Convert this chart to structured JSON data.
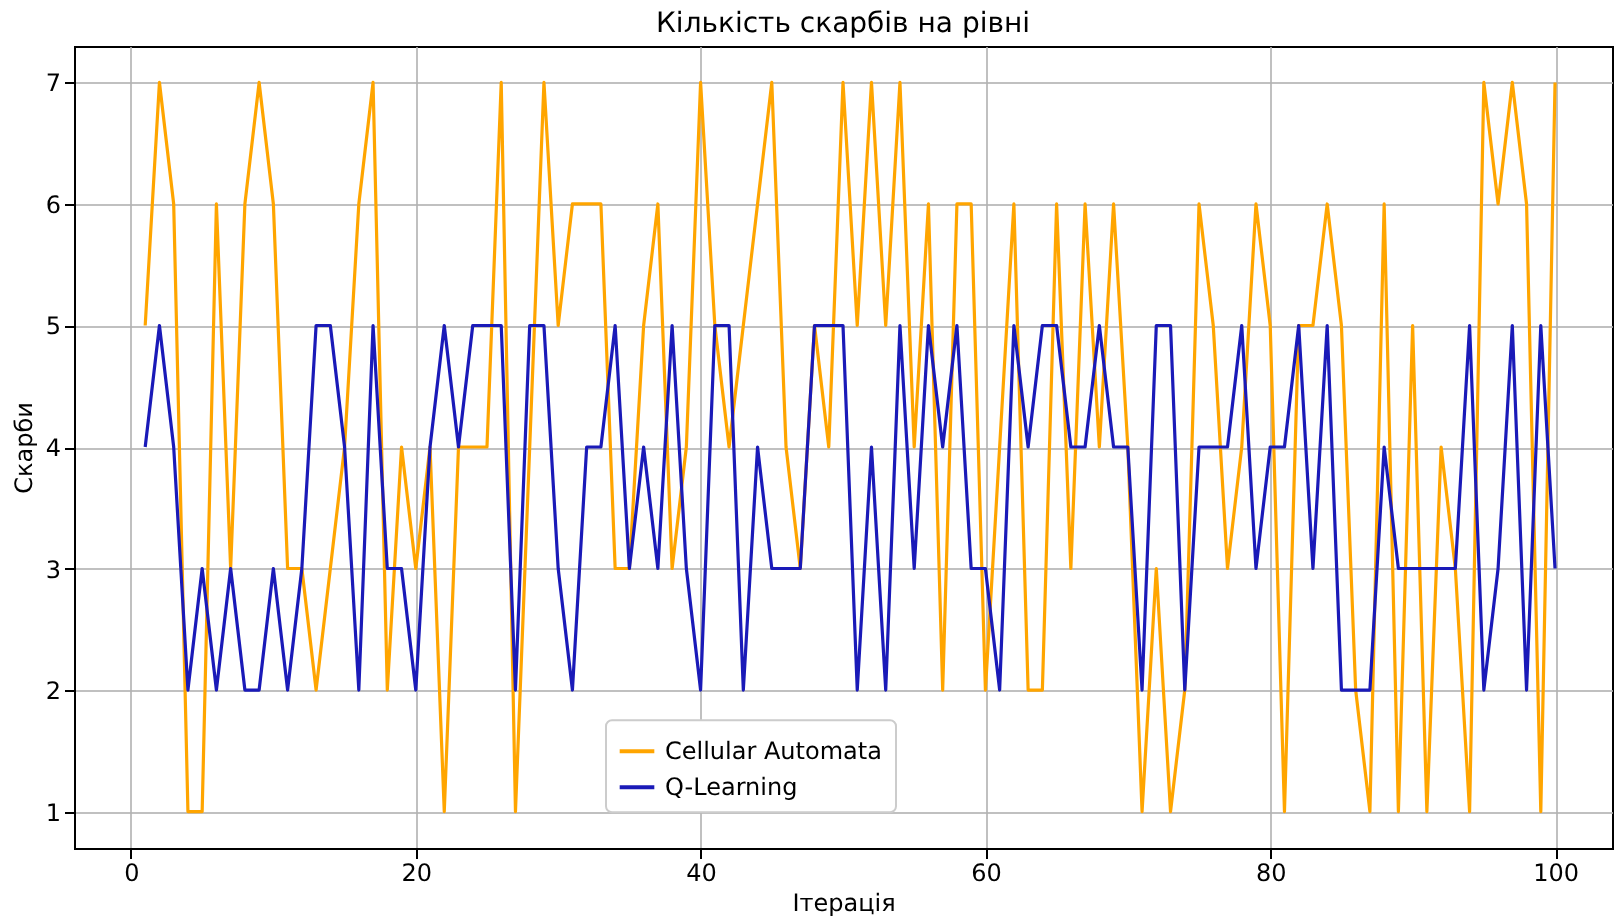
{
  "chart_data": {
    "type": "line",
    "title": "Кількість скарбів на рівні",
    "xlabel": "Ітерація",
    "ylabel": "Скарби",
    "x": [
      1,
      2,
      3,
      4,
      5,
      6,
      7,
      8,
      9,
      10,
      11,
      12,
      13,
      14,
      15,
      16,
      17,
      18,
      19,
      20,
      21,
      22,
      23,
      24,
      25,
      26,
      27,
      28,
      29,
      30,
      31,
      32,
      33,
      34,
      35,
      36,
      37,
      38,
      39,
      40,
      41,
      42,
      43,
      44,
      45,
      46,
      47,
      48,
      49,
      50,
      51,
      52,
      53,
      54,
      55,
      56,
      57,
      58,
      59,
      60,
      61,
      62,
      63,
      64,
      65,
      66,
      67,
      68,
      69,
      70,
      71,
      72,
      73,
      74,
      75,
      76,
      77,
      78,
      79,
      80,
      81,
      82,
      83,
      84,
      85,
      86,
      87,
      88,
      89,
      90,
      91,
      92,
      93,
      94,
      95,
      96,
      97,
      98,
      99,
      100
    ],
    "series": [
      {
        "name": "Cellular Automata",
        "color": "#ffa500",
        "values": [
          5,
          7,
          6,
          1,
          1,
          6,
          3,
          6,
          7,
          6,
          3,
          3,
          2,
          3,
          4,
          6,
          7,
          2,
          4,
          3,
          4,
          1,
          4,
          4,
          4,
          7,
          1,
          4,
          7,
          5,
          6,
          6,
          6,
          3,
          3,
          5,
          6,
          3,
          4,
          7,
          5,
          4,
          5,
          6,
          7,
          4,
          3,
          5,
          4,
          7,
          5,
          7,
          5,
          7,
          4,
          6,
          2,
          6,
          6,
          2,
          4,
          6,
          2,
          2,
          6,
          3,
          6,
          4,
          6,
          4,
          1,
          3,
          1,
          2,
          6,
          5,
          3,
          4,
          6,
          5,
          1,
          5,
          5,
          6,
          5,
          2,
          1,
          6,
          1,
          5,
          1,
          4,
          3,
          1,
          7,
          6,
          7,
          6,
          1,
          7
        ]
      },
      {
        "name": "Q-Learning",
        "color": "#1a1ab8",
        "values": [
          4,
          5,
          4,
          2,
          3,
          2,
          3,
          2,
          2,
          3,
          2,
          3,
          5,
          5,
          4,
          2,
          5,
          3,
          3,
          2,
          4,
          5,
          4,
          5,
          5,
          5,
          2,
          5,
          5,
          3,
          2,
          4,
          4,
          5,
          3,
          4,
          3,
          5,
          3,
          2,
          5,
          5,
          2,
          4,
          3,
          3,
          3,
          5,
          5,
          5,
          2,
          4,
          2,
          5,
          3,
          5,
          4,
          5,
          3,
          3,
          2,
          5,
          4,
          5,
          5,
          4,
          4,
          5,
          4,
          4,
          2,
          5,
          5,
          2,
          4,
          4,
          4,
          5,
          3,
          4,
          4,
          5,
          3,
          5,
          2,
          2,
          2,
          4,
          3,
          3,
          3,
          3,
          3,
          5,
          2,
          3,
          5,
          2,
          5,
          3
        ]
      }
    ],
    "xlim": [
      -4,
      104
    ],
    "xticks": [
      0,
      20,
      40,
      60,
      80,
      100
    ],
    "ylim": [
      0.7,
      7.3
    ],
    "yticks": [
      1,
      2,
      3,
      4,
      5,
      6,
      7
    ],
    "grid": true,
    "legend": "bottom",
    "line_style": "solid",
    "marker": "none"
  }
}
